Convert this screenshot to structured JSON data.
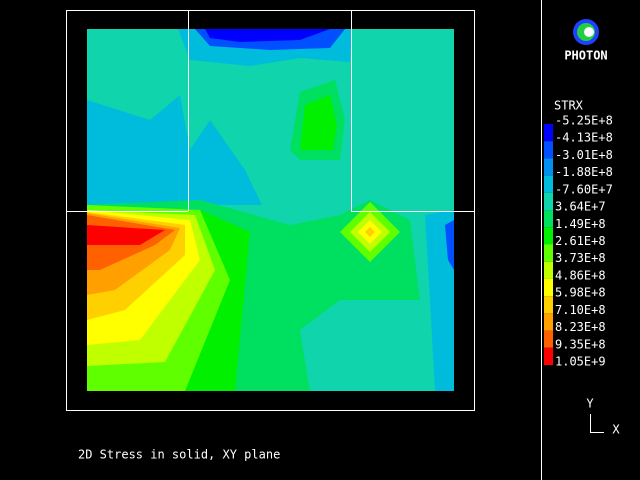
{
  "logo": {
    "text": "PHOTON"
  },
  "legend": {
    "title": "STRX",
    "labels": [
      "-5.25E+8",
      "-4.13E+8",
      "-3.01E+8",
      "-1.88E+8",
      "-7.60E+7",
      "3.64E+7",
      "1.49E+8",
      "2.61E+8",
      "3.73E+8",
      "4.86E+8",
      "5.98E+8",
      "7.10E+8",
      "8.23E+8",
      "9.35E+8",
      "1.05E+9"
    ],
    "colors": [
      "#0000ff",
      "#0050ff",
      "#0090f0",
      "#00bcdc",
      "#10d4ac",
      "#00e060",
      "#00f000",
      "#60ff00",
      "#c0ff00",
      "#ffff00",
      "#ffd000",
      "#ffa000",
      "#ff6000",
      "#ff0000"
    ]
  },
  "caption": "2D Stress in solid, XY plane",
  "axes": {
    "y": "Y",
    "x": "X"
  }
}
